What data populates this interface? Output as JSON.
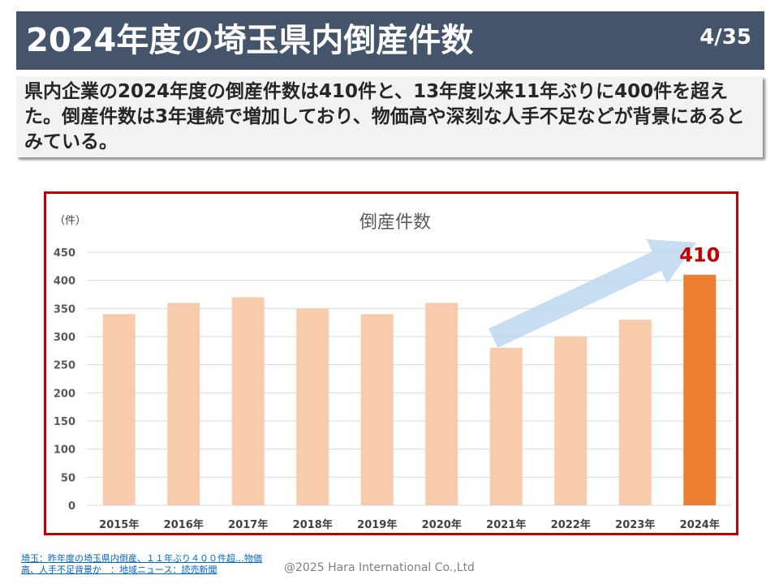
{
  "header": {
    "title": "2024年度の埼玉県内倒産件数",
    "page_number": "4/35"
  },
  "summary": {
    "text": "県内企業の2024年度の倒産件数は410件と、13年度以来11年ぶりに400件を超えた。倒産件数は3年連続で増加しており、物価高や深刻な人手不足などが背景にあるとみている。"
  },
  "chart_data": {
    "type": "bar",
    "title": "倒産件数",
    "ylabel": "（件）",
    "categories": [
      "2015年",
      "2016年",
      "2017年",
      "2018年",
      "2019年",
      "2020年",
      "2021年",
      "2022年",
      "2023年",
      "2024年"
    ],
    "values": [
      340,
      360,
      370,
      350,
      340,
      360,
      280,
      300,
      330,
      410
    ],
    "ylim": [
      0,
      450
    ],
    "yticks": [
      0,
      50,
      100,
      150,
      200,
      250,
      300,
      350,
      400,
      450
    ],
    "grid": true,
    "highlight": {
      "index": 9,
      "label": "410"
    },
    "colors": {
      "bar": "#f8cbad",
      "highlight_bar": "#ed7d31",
      "highlight_label": "#c00000",
      "arrow": "#bdd7ee",
      "grid": "#d9d9d9"
    }
  },
  "footer": {
    "source": "埼玉：昨年度の埼玉県内倒産、１１年ぶり４００件超…物価高、人手不足背景か　：地域ニュース：読売新聞",
    "copyright": "@2025 Hara International Co.,Ltd"
  }
}
